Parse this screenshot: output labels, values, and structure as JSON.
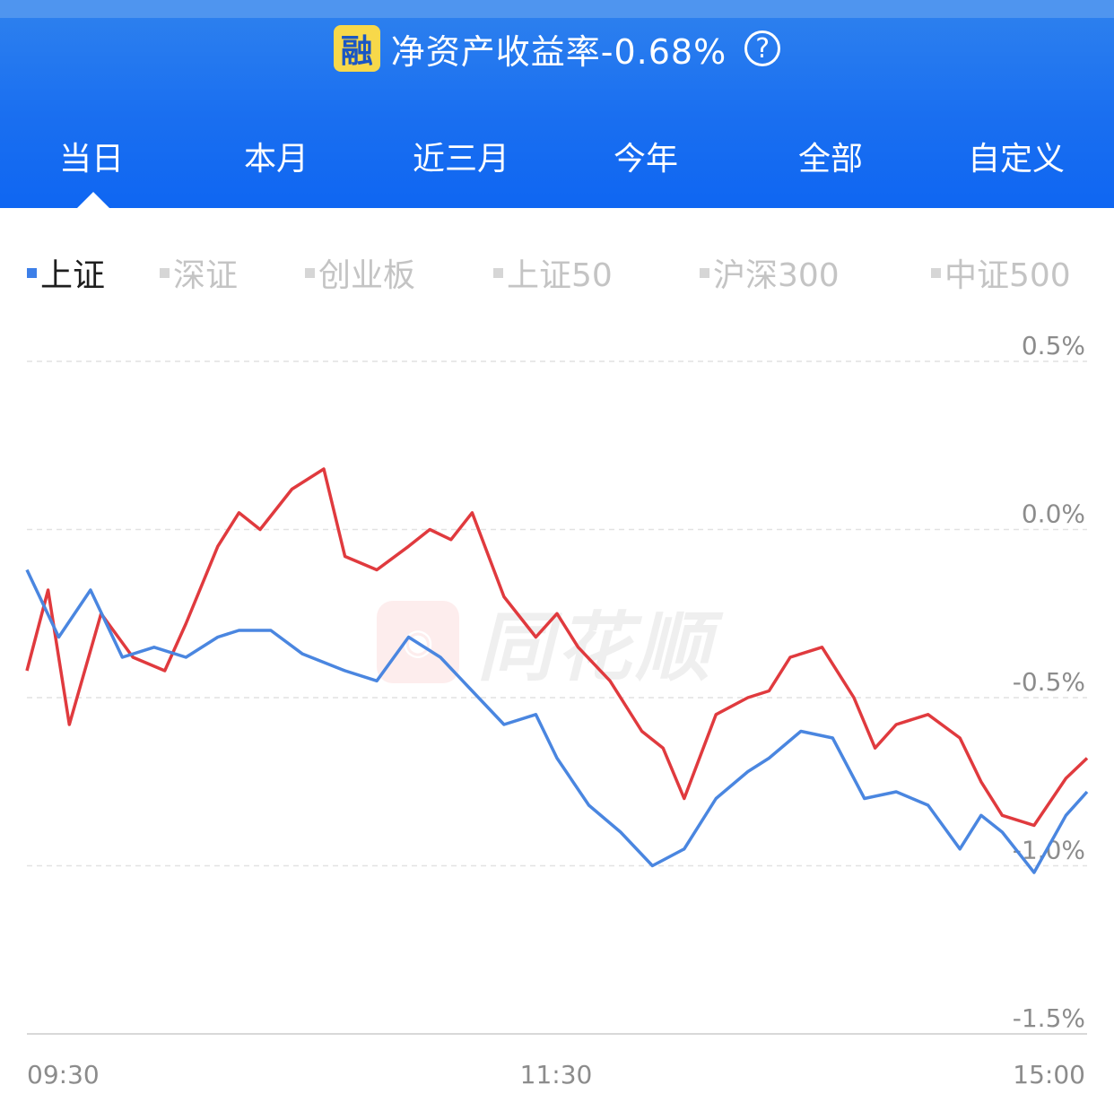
{
  "header": {
    "badge": "融",
    "title": "净资产收益率-0.68%",
    "help": "?"
  },
  "tabs": [
    {
      "label": "当日"
    },
    {
      "label": "本月"
    },
    {
      "label": "近三月"
    },
    {
      "label": "今年"
    },
    {
      "label": "全部"
    },
    {
      "label": "自定义"
    }
  ],
  "legend": [
    {
      "label": "上证",
      "active": true
    },
    {
      "label": "深证"
    },
    {
      "label": "创业板"
    },
    {
      "label": "上证50"
    },
    {
      "label": "沪深300"
    },
    {
      "label": "中证500"
    }
  ],
  "watermark": {
    "text": "同花顺"
  },
  "colors": {
    "primary": "#1a6ff0",
    "badge": "#f7d84a",
    "red_line": "#e03a3e",
    "blue_line": "#4a86e0"
  },
  "chart_data": {
    "type": "line",
    "x_ticks": [
      "09:30",
      "11:30",
      "15:00"
    ],
    "y_ticks": [
      "0.5%",
      "0.0%",
      "-0.5%",
      "-1.0%",
      "-1.5%"
    ],
    "ylim": [
      -1.5,
      0.5
    ],
    "grid": true,
    "series": [
      {
        "color": "#e03a3e",
        "x": [
          0,
          0.02,
          0.04,
          0.07,
          0.1,
          0.13,
          0.15,
          0.18,
          0.2,
          0.22,
          0.25,
          0.28,
          0.3,
          0.33,
          0.36,
          0.38,
          0.4,
          0.42,
          0.45,
          0.48,
          0.5,
          0.52,
          0.55,
          0.58,
          0.6,
          0.62,
          0.65,
          0.68,
          0.7,
          0.72,
          0.75,
          0.78,
          0.8,
          0.82,
          0.85,
          0.88,
          0.9,
          0.92,
          0.95,
          0.98,
          1
        ],
        "values": [
          -0.42,
          -0.18,
          -0.58,
          -0.25,
          -0.38,
          -0.42,
          -0.28,
          -0.05,
          0.05,
          0.0,
          0.12,
          0.18,
          -0.08,
          -0.12,
          -0.05,
          0.0,
          -0.03,
          0.05,
          -0.2,
          -0.32,
          -0.25,
          -0.35,
          -0.45,
          -0.6,
          -0.65,
          -0.8,
          -0.55,
          -0.5,
          -0.48,
          -0.38,
          -0.35,
          -0.5,
          -0.65,
          -0.58,
          -0.55,
          -0.62,
          -0.75,
          -0.85,
          -0.88,
          -0.74,
          -0.68
        ]
      },
      {
        "color": "#4a86e0",
        "x": [
          0,
          0.03,
          0.06,
          0.09,
          0.12,
          0.15,
          0.18,
          0.2,
          0.23,
          0.26,
          0.3,
          0.33,
          0.36,
          0.39,
          0.42,
          0.45,
          0.48,
          0.5,
          0.53,
          0.56,
          0.59,
          0.62,
          0.65,
          0.68,
          0.7,
          0.73,
          0.76,
          0.79,
          0.82,
          0.85,
          0.88,
          0.9,
          0.92,
          0.95,
          0.98,
          1
        ],
        "values": [
          -0.12,
          -0.32,
          -0.18,
          -0.38,
          -0.35,
          -0.38,
          -0.32,
          -0.3,
          -0.3,
          -0.37,
          -0.42,
          -0.45,
          -0.32,
          -0.38,
          -0.48,
          -0.58,
          -0.55,
          -0.68,
          -0.82,
          -0.9,
          -1.0,
          -0.95,
          -0.8,
          -0.72,
          -0.68,
          -0.6,
          -0.62,
          -0.8,
          -0.78,
          -0.82,
          -0.95,
          -0.85,
          -0.9,
          -1.02,
          -0.85,
          -0.78
        ]
      }
    ]
  }
}
